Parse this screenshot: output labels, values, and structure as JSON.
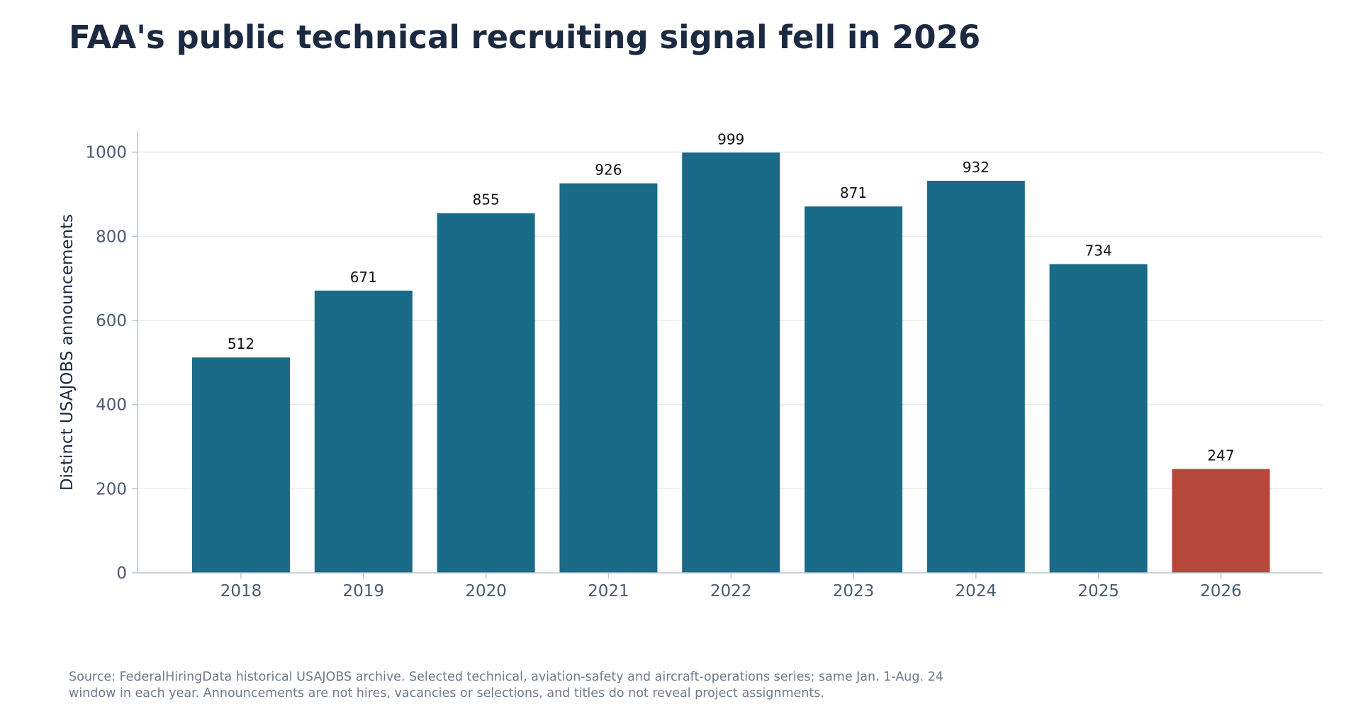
{
  "chart_data": {
    "type": "bar",
    "title": "FAA's public technical recruiting signal fell in 2026",
    "ylabel": "Distinct USAJOBS announcements",
    "xlabel": "",
    "categories": [
      "2018",
      "2019",
      "2020",
      "2021",
      "2022",
      "2023",
      "2024",
      "2025",
      "2026"
    ],
    "values": [
      512,
      671,
      855,
      926,
      999,
      871,
      932,
      734,
      247
    ],
    "value_labels": [
      "512",
      "671",
      "855",
      "926",
      "999",
      "871",
      "932",
      "734",
      "247"
    ],
    "ylim": [
      0,
      1050
    ],
    "yticks": [
      0,
      200,
      400,
      600,
      800,
      1000
    ],
    "ytick_labels": [
      "0",
      "200",
      "400",
      "600",
      "800",
      "1000"
    ],
    "grid": true,
    "colors": {
      "default_bar": "#1a6b87",
      "highlight_bar": "#b5473b",
      "highlight_category": "2026",
      "grid": "#e6ebef",
      "axis": "#b9c6d0"
    }
  },
  "source_note": "Source: FederalHiringData historical USAJOBS archive. Selected technical, aviation-safety and aircraft-operations series; same Jan. 1-Aug. 24 window in each year. Announcements are not hires, vacancies or selections, and titles do not reveal project assignments."
}
